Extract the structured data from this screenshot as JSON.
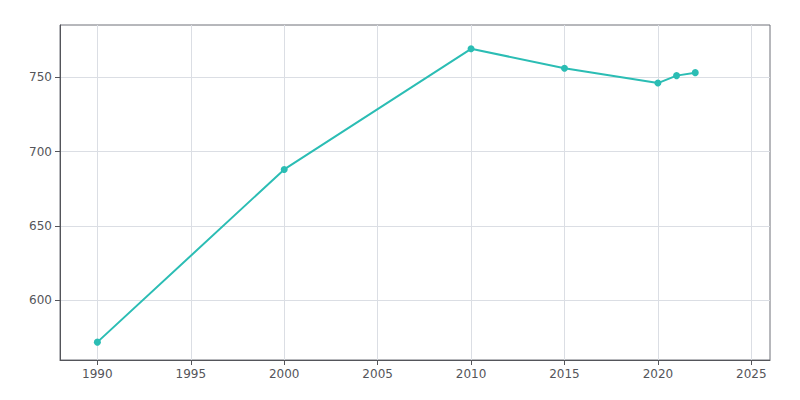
{
  "chart_data": {
    "type": "line",
    "x": [
      1990,
      2000,
      2010,
      2015,
      2020,
      2021,
      2022
    ],
    "values": [
      572,
      688,
      769,
      756,
      746,
      751,
      753
    ],
    "color": "#2bbdb4",
    "marker": "circle",
    "xlim": [
      1988,
      2026
    ],
    "xticks": [
      1990,
      1995,
      2000,
      2005,
      2010,
      2015,
      2020,
      2025
    ],
    "ylim": [
      560,
      785
    ],
    "yticks": [
      600,
      650,
      700,
      750
    ],
    "grid": true
  }
}
